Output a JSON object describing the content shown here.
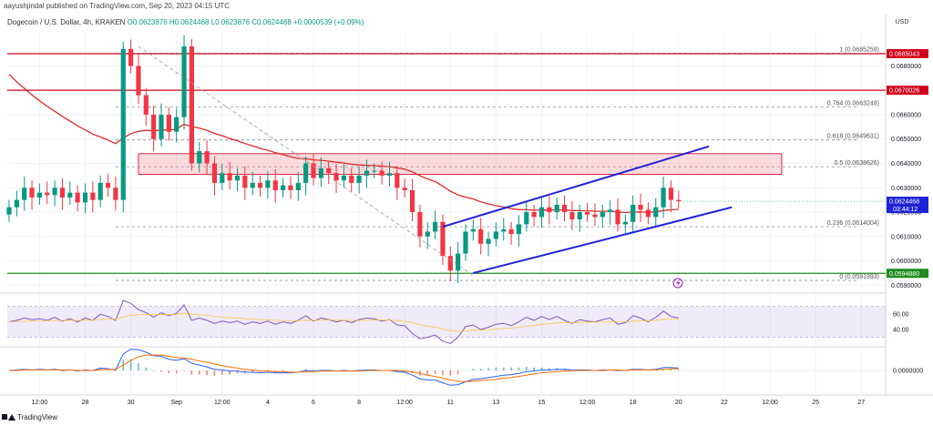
{
  "header": {
    "publish_text": "aayushjindal published on TradingView.com, Sep 20, 2023 04:15 UTC"
  },
  "symbol": {
    "name": "Dogecoin / U.S. Dollar, 4h, KRAKEN",
    "ohlc": "O0.0623876 H0.0624468 L0.0623876 C0.0624468 +0.0000539 (+0.09%)"
  },
  "axis": {
    "currency": "USD"
  },
  "footer": {
    "brand": "TradingView"
  },
  "colors": {
    "up": "#089981",
    "down": "#f23645",
    "trend": "#1e22d6",
    "ma": "#e02b2b",
    "resistance": "#d0021b",
    "support": "#1e8c1e",
    "rsi": "#7e57c2"
  },
  "chart_data": [
    {
      "type": "candlestick",
      "title": "",
      "ylim": [
        0.05875,
        0.0694
      ],
      "price_ticks": [
        {
          "value": 0.059,
          "label": "0.0590000"
        },
        {
          "value": 0.06,
          "label": "0.0600000"
        },
        {
          "value": 0.061,
          "label": "0.0610000"
        },
        {
          "value": 0.062,
          "label": "0.0620000"
        },
        {
          "value": 0.063,
          "label": "0.0630000"
        },
        {
          "value": 0.064,
          "label": "0.0640000"
        },
        {
          "value": 0.065,
          "label": "0.0650000"
        },
        {
          "value": 0.066,
          "label": "0.0660000"
        },
        {
          "value": 0.068,
          "label": "0.0680000"
        }
      ],
      "x_labels": [
        {
          "bar": 4,
          "label": "12:00"
        },
        {
          "bar": 10,
          "label": "28"
        },
        {
          "bar": 16,
          "label": "30"
        },
        {
          "bar": 22,
          "label": "Sep"
        },
        {
          "bar": 28,
          "label": "12:00"
        },
        {
          "bar": 34,
          "label": "4"
        },
        {
          "bar": 40,
          "label": "6"
        },
        {
          "bar": 46,
          "label": "8"
        },
        {
          "bar": 52,
          "label": "12:00"
        },
        {
          "bar": 58,
          "label": "11"
        },
        {
          "bar": 64,
          "label": "13"
        },
        {
          "bar": 70,
          "label": "15"
        },
        {
          "bar": 76,
          "label": "12:00"
        },
        {
          "bar": 82,
          "label": "18"
        },
        {
          "bar": 88,
          "label": "20"
        },
        {
          "bar": 94,
          "label": "22"
        },
        {
          "bar": 100,
          "label": "12:00"
        },
        {
          "bar": 106,
          "label": "25"
        },
        {
          "bar": 112,
          "label": "27"
        }
      ],
      "closes": [
        0.0622,
        0.0625,
        0.063,
        0.0626,
        0.0628,
        0.0627,
        0.063,
        0.0626,
        0.0628,
        0.0624,
        0.0628,
        0.0625,
        0.0632,
        0.063,
        0.0625,
        0.0687,
        0.068,
        0.0668,
        0.066,
        0.065,
        0.066,
        0.0653,
        0.0659,
        0.0688,
        0.064,
        0.0645,
        0.064,
        0.0632,
        0.0636,
        0.0633,
        0.0635,
        0.063,
        0.0632,
        0.063,
        0.0633,
        0.0629,
        0.0631,
        0.0629,
        0.0632,
        0.064,
        0.0634,
        0.0638,
        0.0636,
        0.0633,
        0.0635,
        0.0632,
        0.0635,
        0.0637,
        0.0637,
        0.0635,
        0.0636,
        0.063,
        0.0629,
        0.062,
        0.061,
        0.0612,
        0.0616,
        0.0602,
        0.0596,
        0.0603,
        0.0612,
        0.0613,
        0.0607,
        0.0609,
        0.0612,
        0.0613,
        0.0611,
        0.0615,
        0.062,
        0.0618,
        0.0622,
        0.062,
        0.0623,
        0.062,
        0.0617,
        0.062,
        0.0619,
        0.0618,
        0.062,
        0.0621,
        0.0615,
        0.0616,
        0.0623,
        0.0621,
        0.0618,
        0.0622,
        0.063,
        0.0625,
        0.06245
      ],
      "ma_label": "",
      "resistance_levels": [
        {
          "value": 0.0685043,
          "label": "0.0685043"
        },
        {
          "value": 0.0670026,
          "label": "0.0670026"
        }
      ],
      "support_level": {
        "value": 0.059488,
        "label": "0.0594880"
      },
      "current_price": {
        "value": 0.0624468,
        "label": "0.0624468",
        "countdown": "03:44:12"
      },
      "fib_levels": [
        {
          "ratio": "1",
          "value": 0.0685259,
          "label": "1 (0.0685259)"
        },
        {
          "ratio": "0.764",
          "value": 0.0663248,
          "label": "0.764 (0.0663248)"
        },
        {
          "ratio": "0.618",
          "value": 0.0649631,
          "label": "0.618 (0.0649631)"
        },
        {
          "ratio": "0.5",
          "value": 0.0638626,
          "label": "0.5 (0.0638626)"
        },
        {
          "ratio": "0.236",
          "value": 0.0614004,
          "label": "0.236 (0.0614004)"
        },
        {
          "ratio": "0",
          "value": 0.0591993,
          "label": "0 (0.0591993)"
        }
      ],
      "resistance_zone": [
        0.06355,
        0.0644
      ],
      "channel": {
        "upper": [
          {
            "bar": 57,
            "value": 0.0614
          },
          {
            "bar": 92,
            "value": 0.0647
          }
        ],
        "lower": [
          {
            "bar": 61,
            "value": 0.0595
          },
          {
            "bar": 95,
            "value": 0.0622
          }
        ]
      },
      "downtrend": [
        {
          "bar": 17,
          "value": 0.0688
        },
        {
          "bar": 61,
          "value": 0.0594
        }
      ]
    },
    {
      "type": "line",
      "title": "",
      "ylim": [
        20,
        85
      ],
      "y_ticks": [
        {
          "value": 60,
          "label": "60.00"
        },
        {
          "value": 40,
          "label": "40.00"
        }
      ],
      "band": [
        30,
        70
      ],
      "values": [
        50,
        52,
        55,
        53,
        54,
        52,
        56,
        51,
        54,
        50,
        55,
        52,
        60,
        57,
        52,
        78,
        74,
        66,
        62,
        56,
        62,
        58,
        61,
        72,
        52,
        55,
        52,
        48,
        51,
        49,
        51,
        47,
        50,
        48,
        51,
        47,
        50,
        48,
        52,
        58,
        51,
        55,
        53,
        50,
        52,
        49,
        53,
        55,
        54,
        51,
        53,
        46,
        45,
        35,
        28,
        30,
        33,
        25,
        22,
        30,
        44,
        46,
        40,
        43,
        47,
        48,
        45,
        50,
        56,
        52,
        57,
        53,
        57,
        52,
        48,
        53,
        51,
        50,
        53,
        55,
        47,
        49,
        58,
        55,
        50,
        56,
        64,
        57,
        55
      ]
    },
    {
      "type": "line",
      "title": "",
      "zero_label": "0.0000000",
      "fast": [
        0.0,
        0.1,
        0.2,
        0.1,
        0.2,
        0.1,
        0.2,
        0.0,
        0.1,
        -0.1,
        0.1,
        0.0,
        0.4,
        0.3,
        0.1,
        2.8,
        3.6,
        3.5,
        3.1,
        2.5,
        2.4,
        1.9,
        1.7,
        2.0,
        1.2,
        0.9,
        0.6,
        0.2,
        0.1,
        -0.1,
        -0.1,
        -0.3,
        -0.3,
        -0.4,
        -0.3,
        -0.4,
        -0.4,
        -0.4,
        -0.3,
        0.0,
        -0.1,
        0.0,
        0.0,
        -0.1,
        0.0,
        -0.1,
        0.0,
        0.1,
        0.1,
        0.0,
        0.0,
        -0.2,
        -0.3,
        -0.8,
        -1.4,
        -1.6,
        -1.6,
        -2.1,
        -2.5,
        -2.4,
        -1.9,
        -1.5,
        -1.4,
        -1.2,
        -1.0,
        -0.8,
        -0.7,
        -0.5,
        -0.2,
        -0.1,
        0.1,
        0.1,
        0.2,
        0.2,
        0.1,
        0.1,
        0.1,
        0.0,
        0.1,
        0.1,
        0.0,
        0.0,
        0.2,
        0.2,
        0.1,
        0.2,
        0.5,
        0.5,
        0.4
      ],
      "slow": [
        0.0,
        0.0,
        0.1,
        0.1,
        0.1,
        0.1,
        0.1,
        0.1,
        0.1,
        0.0,
        0.0,
        0.0,
        0.1,
        0.2,
        0.2,
        0.9,
        1.7,
        2.3,
        2.6,
        2.6,
        2.6,
        2.4,
        2.2,
        2.1,
        1.9,
        1.6,
        1.4,
        1.1,
        0.8,
        0.6,
        0.4,
        0.2,
        0.1,
        -0.1,
        -0.1,
        -0.2,
        -0.2,
        -0.3,
        -0.3,
        -0.2,
        -0.2,
        -0.1,
        -0.1,
        -0.1,
        -0.1,
        -0.1,
        -0.1,
        0.0,
        0.0,
        0.0,
        0.0,
        0.0,
        -0.1,
        -0.3,
        -0.5,
        -0.8,
        -1.0,
        -1.3,
        -1.6,
        -1.8,
        -1.9,
        -1.8,
        -1.7,
        -1.6,
        -1.5,
        -1.3,
        -1.2,
        -1.0,
        -0.8,
        -0.6,
        -0.4,
        -0.3,
        -0.2,
        -0.1,
        0.0,
        0.0,
        0.0,
        0.0,
        0.0,
        0.1,
        0.1,
        0.0,
        0.1,
        0.1,
        0.1,
        0.1,
        0.2,
        0.3,
        0.3
      ]
    }
  ]
}
